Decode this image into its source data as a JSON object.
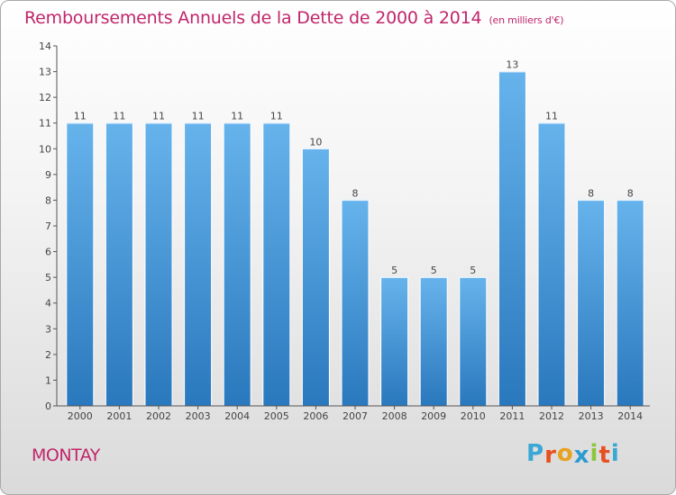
{
  "header": {
    "title": "Remboursements Annuels de la Dette de 2000 à 2014",
    "unit": "(en milliers d'€)"
  },
  "commune": "MONTAY",
  "logo": {
    "text": "Proxiti",
    "letter_colors": [
      "#3aa7d6",
      "#e7501f",
      "#e7a21f",
      "#2c9bd1",
      "#8cc63f",
      "#e7501f",
      "#3aa7d6"
    ]
  },
  "colors": {
    "bar": "#3b93d6",
    "bar_light": "#63b0ea",
    "bar_dark": "#2a7ec3",
    "title": "#c0266b",
    "axis": "#555555"
  },
  "chart_data": {
    "type": "bar",
    "title": "Remboursements Annuels de la Dette de 2000 à 2014",
    "subtitle": "(en milliers d'€)",
    "categories": [
      "2000",
      "2001",
      "2002",
      "2003",
      "2004",
      "2005",
      "2006",
      "2007",
      "2008",
      "2009",
      "2010",
      "2011",
      "2012",
      "2013",
      "2014"
    ],
    "values": [
      11,
      11,
      11,
      11,
      11,
      11,
      10,
      8,
      5,
      5,
      5,
      13,
      11,
      8,
      8
    ],
    "data_labels": [
      "11",
      "11",
      "11",
      "11",
      "11",
      "11",
      "10",
      "8",
      "5",
      "5",
      "5",
      "13",
      "11",
      "8",
      "8"
    ],
    "ylim": [
      0,
      14
    ],
    "yticks": [
      0,
      1,
      2,
      3,
      4,
      5,
      6,
      7,
      8,
      9,
      10,
      11,
      12,
      13,
      14
    ],
    "grid": false,
    "legend": "none"
  }
}
